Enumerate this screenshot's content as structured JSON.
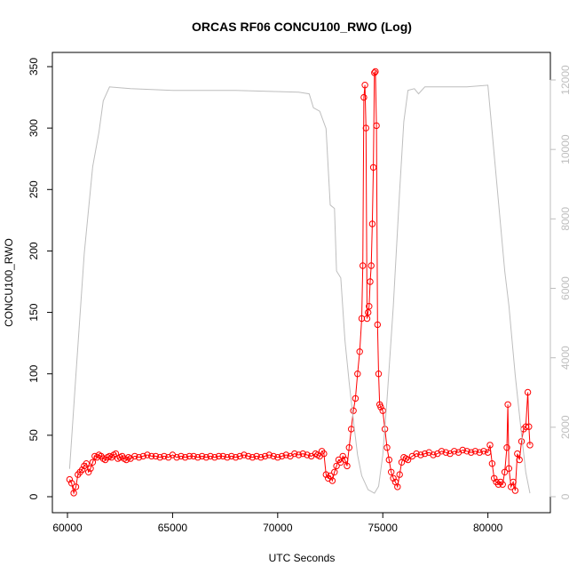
{
  "chart_data": {
    "type": "line",
    "title": "ORCAS RF06 CONCU100_RWO (Log)",
    "xlabel": "UTC Seconds",
    "ylabel": "CONCU100_RWO",
    "xlim": [
      60000,
      82000
    ],
    "ylim": [
      0,
      350
    ],
    "y2lim": [
      0,
      12000
    ],
    "x_ticks": [
      60000,
      65000,
      70000,
      75000,
      80000
    ],
    "y_ticks": [
      0,
      50,
      100,
      150,
      200,
      250,
      300,
      350
    ],
    "y2_ticks": [
      0,
      2000,
      4000,
      6000,
      8000,
      10000,
      12000
    ],
    "grid": false,
    "series": [
      {
        "axis": "left",
        "color": "#ff0000",
        "marker": "open-circle",
        "line": "solid",
        "points": [
          [
            60100,
            14
          ],
          [
            60200,
            11
          ],
          [
            60300,
            3
          ],
          [
            60400,
            8
          ],
          [
            60500,
            18
          ],
          [
            60600,
            20
          ],
          [
            60700,
            22
          ],
          [
            60800,
            25
          ],
          [
            60900,
            27
          ],
          [
            61000,
            20
          ],
          [
            61100,
            23
          ],
          [
            61200,
            28
          ],
          [
            61300,
            33
          ],
          [
            61400,
            32
          ],
          [
            61500,
            34
          ],
          [
            61600,
            33
          ],
          [
            61700,
            31
          ],
          [
            61800,
            30
          ],
          [
            61900,
            32
          ],
          [
            62000,
            33
          ],
          [
            62100,
            32
          ],
          [
            62200,
            34
          ],
          [
            62300,
            35
          ],
          [
            62400,
            31
          ],
          [
            62500,
            32
          ],
          [
            62600,
            33
          ],
          [
            62700,
            31
          ],
          [
            62800,
            30
          ],
          [
            62900,
            32
          ],
          [
            63000,
            31
          ],
          [
            63200,
            33
          ],
          [
            63400,
            32
          ],
          [
            63600,
            33
          ],
          [
            63800,
            34
          ],
          [
            64000,
            33
          ],
          [
            64200,
            33
          ],
          [
            64400,
            32
          ],
          [
            64600,
            33
          ],
          [
            64800,
            32
          ],
          [
            65000,
            34
          ],
          [
            65200,
            32
          ],
          [
            65400,
            33
          ],
          [
            65600,
            32
          ],
          [
            65800,
            33
          ],
          [
            66000,
            33
          ],
          [
            66200,
            32
          ],
          [
            66400,
            33
          ],
          [
            66600,
            32
          ],
          [
            66800,
            33
          ],
          [
            67000,
            32
          ],
          [
            67200,
            33
          ],
          [
            67400,
            33
          ],
          [
            67600,
            32
          ],
          [
            67800,
            33
          ],
          [
            68000,
            32
          ],
          [
            68200,
            33
          ],
          [
            68400,
            34
          ],
          [
            68600,
            33
          ],
          [
            68800,
            32
          ],
          [
            69000,
            33
          ],
          [
            69200,
            32
          ],
          [
            69400,
            33
          ],
          [
            69600,
            34
          ],
          [
            69800,
            33
          ],
          [
            70000,
            32
          ],
          [
            70200,
            33
          ],
          [
            70400,
            34
          ],
          [
            70600,
            33
          ],
          [
            70800,
            35
          ],
          [
            71000,
            34
          ],
          [
            71200,
            35
          ],
          [
            71400,
            34
          ],
          [
            71600,
            33
          ],
          [
            71800,
            35
          ],
          [
            71900,
            34
          ],
          [
            72000,
            33
          ],
          [
            72100,
            37
          ],
          [
            72200,
            35
          ],
          [
            72300,
            18
          ],
          [
            72400,
            15
          ],
          [
            72500,
            17
          ],
          [
            72600,
            13
          ],
          [
            72700,
            20
          ],
          [
            72800,
            25
          ],
          [
            72900,
            30
          ],
          [
            73000,
            28
          ],
          [
            73100,
            33
          ],
          [
            73200,
            30
          ],
          [
            73300,
            25
          ],
          [
            73400,
            40
          ],
          [
            73500,
            55
          ],
          [
            73600,
            70
          ],
          [
            73700,
            80
          ],
          [
            73800,
            100
          ],
          [
            73900,
            118
          ],
          [
            74000,
            145
          ],
          [
            74050,
            188
          ],
          [
            74100,
            325
          ],
          [
            74150,
            335
          ],
          [
            74200,
            300
          ],
          [
            74250,
            145
          ],
          [
            74300,
            150
          ],
          [
            74350,
            155
          ],
          [
            74400,
            175
          ],
          [
            74450,
            188
          ],
          [
            74500,
            222
          ],
          [
            74550,
            268
          ],
          [
            74600,
            345
          ],
          [
            74650,
            346
          ],
          [
            74700,
            302
          ],
          [
            74750,
            140
          ],
          [
            74800,
            100
          ],
          [
            74850,
            75
          ],
          [
            74900,
            73
          ],
          [
            75000,
            70
          ],
          [
            75100,
            55
          ],
          [
            75200,
            40
          ],
          [
            75300,
            30
          ],
          [
            75400,
            20
          ],
          [
            75500,
            15
          ],
          [
            75600,
            12
          ],
          [
            75700,
            8
          ],
          [
            75800,
            18
          ],
          [
            75900,
            28
          ],
          [
            76000,
            32
          ],
          [
            76100,
            31
          ],
          [
            76200,
            30
          ],
          [
            76400,
            33
          ],
          [
            76600,
            35
          ],
          [
            76800,
            34
          ],
          [
            77000,
            35
          ],
          [
            77200,
            36
          ],
          [
            77400,
            34
          ],
          [
            77600,
            35
          ],
          [
            77800,
            37
          ],
          [
            78000,
            36
          ],
          [
            78200,
            35
          ],
          [
            78400,
            37
          ],
          [
            78600,
            36
          ],
          [
            78800,
            38
          ],
          [
            79000,
            37
          ],
          [
            79200,
            36
          ],
          [
            79400,
            37
          ],
          [
            79600,
            36
          ],
          [
            79800,
            37
          ],
          [
            80000,
            36
          ],
          [
            80100,
            42
          ],
          [
            80200,
            27
          ],
          [
            80300,
            15
          ],
          [
            80400,
            12
          ],
          [
            80500,
            10
          ],
          [
            80600,
            12
          ],
          [
            80700,
            10
          ],
          [
            80800,
            20
          ],
          [
            80900,
            40
          ],
          [
            80950,
            75
          ],
          [
            81000,
            23
          ],
          [
            81100,
            8
          ],
          [
            81200,
            12
          ],
          [
            81300,
            5
          ],
          [
            81400,
            35
          ],
          [
            81500,
            30
          ],
          [
            81600,
            45
          ],
          [
            81700,
            55
          ],
          [
            81800,
            57
          ],
          [
            81900,
            85
          ],
          [
            81950,
            57
          ],
          [
            82000,
            42
          ]
        ]
      },
      {
        "axis": "right",
        "color": "#bebebe",
        "marker": "none",
        "line": "solid",
        "points": [
          [
            60100,
            800
          ],
          [
            60400,
            3500
          ],
          [
            60800,
            7000
          ],
          [
            61200,
            9500
          ],
          [
            61500,
            10500
          ],
          [
            61700,
            11400
          ],
          [
            62000,
            11800
          ],
          [
            63000,
            11750
          ],
          [
            65000,
            11700
          ],
          [
            68000,
            11700
          ],
          [
            71000,
            11650
          ],
          [
            71500,
            11600
          ],
          [
            71700,
            11200
          ],
          [
            72000,
            11100
          ],
          [
            72300,
            10600
          ],
          [
            72500,
            8400
          ],
          [
            72700,
            8300
          ],
          [
            72800,
            6500
          ],
          [
            73000,
            6300
          ],
          [
            73200,
            4500
          ],
          [
            73400,
            3300
          ],
          [
            73600,
            2200
          ],
          [
            73800,
            1200
          ],
          [
            74000,
            600
          ],
          [
            74300,
            200
          ],
          [
            74600,
            100
          ],
          [
            74800,
            300
          ],
          [
            75000,
            1200
          ],
          [
            75200,
            2800
          ],
          [
            75500,
            5500
          ],
          [
            75800,
            8800
          ],
          [
            76000,
            10800
          ],
          [
            76200,
            11700
          ],
          [
            76500,
            11750
          ],
          [
            76700,
            11600
          ],
          [
            77000,
            11800
          ],
          [
            78000,
            11800
          ],
          [
            79000,
            11800
          ],
          [
            80000,
            11850
          ],
          [
            80200,
            10500
          ],
          [
            80500,
            8500
          ],
          [
            80800,
            6500
          ],
          [
            81000,
            5500
          ],
          [
            81300,
            3500
          ],
          [
            81600,
            1800
          ],
          [
            81800,
            700
          ],
          [
            82000,
            100
          ]
        ]
      }
    ]
  }
}
